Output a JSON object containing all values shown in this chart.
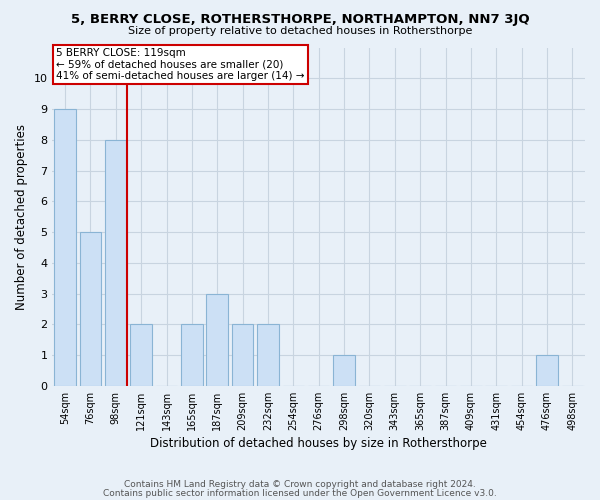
{
  "title": "5, BERRY CLOSE, ROTHERSTHORPE, NORTHAMPTON, NN7 3JQ",
  "subtitle": "Size of property relative to detached houses in Rothersthorpe",
  "xlabel": "Distribution of detached houses by size in Rothersthorpe",
  "ylabel": "Number of detached properties",
  "footnote1": "Contains HM Land Registry data © Crown copyright and database right 2024.",
  "footnote2": "Contains public sector information licensed under the Open Government Licence v3.0.",
  "bin_labels": [
    "54sqm",
    "76sqm",
    "98sqm",
    "121sqm",
    "143sqm",
    "165sqm",
    "187sqm",
    "209sqm",
    "232sqm",
    "254sqm",
    "276sqm",
    "298sqm",
    "320sqm",
    "343sqm",
    "365sqm",
    "387sqm",
    "409sqm",
    "431sqm",
    "454sqm",
    "476sqm",
    "498sqm"
  ],
  "counts": [
    9,
    5,
    8,
    2,
    0,
    2,
    3,
    2,
    2,
    0,
    0,
    1,
    0,
    0,
    0,
    0,
    0,
    0,
    0,
    1,
    0
  ],
  "bar_color": "#cce0f5",
  "bar_edge_color": "#8ab4d4",
  "grid_color": "#c8d4e0",
  "ref_line_color": "#cc0000",
  "annotation_text": "5 BERRY CLOSE: 119sqm\n← 59% of detached houses are smaller (20)\n41% of semi-detached houses are larger (14) →",
  "annotation_box_color": "#ffffff",
  "annotation_box_edge": "#cc0000",
  "ylim": [
    0,
    11
  ],
  "yticks": [
    0,
    1,
    2,
    3,
    4,
    5,
    6,
    7,
    8,
    9,
    10,
    11
  ],
  "bg_color": "#e8f0f8"
}
